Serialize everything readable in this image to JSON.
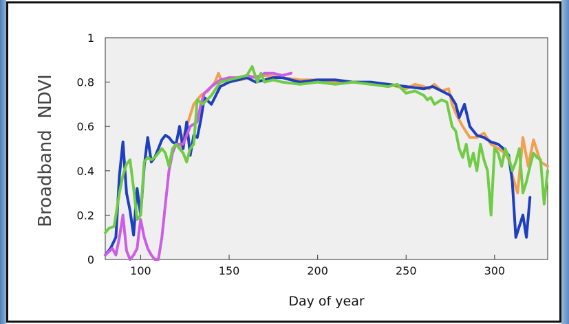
{
  "chart_data": {
    "type": "line",
    "title": "",
    "xlabel": "Day of year",
    "ylabel": "Broadband  NDVI",
    "xlim": [
      80,
      330
    ],
    "ylim": [
      0,
      1
    ],
    "x_ticks": [
      100,
      150,
      200,
      250,
      300
    ],
    "y_ticks": [
      0,
      0.2,
      0.4,
      0.6,
      0.8,
      1
    ],
    "y_tick_labels": [
      "0",
      "0.2",
      "0.4",
      "0.6",
      "0.8",
      "1"
    ],
    "x_tick_labels": [
      "100",
      "150",
      "200",
      "250",
      "300"
    ],
    "grid": false,
    "plot_background": "#efefef",
    "series": [
      {
        "color": "#f0a050",
        "x": [
          122,
          126,
          130,
          134,
          138,
          142,
          144,
          146,
          150,
          156,
          162,
          170,
          180,
          190,
          200,
          210,
          220,
          230,
          240,
          250,
          255,
          260,
          263,
          266,
          270,
          274,
          276,
          278,
          282,
          286,
          290,
          294,
          298,
          302,
          306,
          308,
          310,
          313,
          316,
          319,
          322,
          326,
          330
        ],
        "y": [
          0.5,
          0.6,
          0.7,
          0.74,
          0.76,
          0.8,
          0.84,
          0.8,
          0.82,
          0.81,
          0.82,
          0.83,
          0.82,
          0.81,
          0.81,
          0.8,
          0.8,
          0.79,
          0.79,
          0.77,
          0.79,
          0.78,
          0.77,
          0.79,
          0.76,
          0.77,
          0.7,
          0.66,
          0.6,
          0.55,
          0.55,
          0.57,
          0.52,
          0.5,
          0.48,
          0.45,
          0.38,
          0.3,
          0.55,
          0.42,
          0.54,
          0.44,
          0.42
        ]
      },
      {
        "color": "#1e3fbf",
        "x": [
          80,
          83,
          86,
          88,
          90,
          92,
          94,
          96,
          98,
          100,
          102,
          104,
          106,
          108,
          110,
          112,
          114,
          116,
          118,
          120,
          122,
          124,
          126,
          128,
          130,
          132,
          134,
          136,
          140,
          145,
          150,
          155,
          160,
          165,
          170,
          175,
          180,
          185,
          190,
          200,
          210,
          220,
          230,
          240,
          250,
          260,
          265,
          270,
          275,
          278,
          280,
          283,
          286,
          290,
          294,
          298,
          302,
          305,
          308,
          310,
          312,
          314,
          316,
          318,
          320
        ],
        "y": [
          0.02,
          0.05,
          0.1,
          0.38,
          0.53,
          0.3,
          0.22,
          0.11,
          0.32,
          0.2,
          0.42,
          0.55,
          0.44,
          0.46,
          0.5,
          0.54,
          0.56,
          0.55,
          0.53,
          0.52,
          0.6,
          0.5,
          0.62,
          0.47,
          0.56,
          0.55,
          0.63,
          0.73,
          0.7,
          0.78,
          0.8,
          0.81,
          0.82,
          0.8,
          0.81,
          0.82,
          0.82,
          0.81,
          0.8,
          0.81,
          0.81,
          0.8,
          0.8,
          0.79,
          0.78,
          0.77,
          0.78,
          0.76,
          0.74,
          0.7,
          0.64,
          0.7,
          0.6,
          0.56,
          0.55,
          0.53,
          0.52,
          0.5,
          0.47,
          0.35,
          0.1,
          0.15,
          0.2,
          0.1,
          0.28
        ]
      },
      {
        "color": "#cc5ee6",
        "x": [
          80,
          84,
          86,
          88,
          90,
          92,
          94,
          96,
          98,
          99,
          100,
          102,
          104,
          106,
          108,
          110,
          112,
          114,
          116,
          118,
          120,
          124,
          128,
          132,
          134,
          136,
          140,
          145,
          150,
          155,
          160,
          165,
          170,
          175,
          180,
          185
        ],
        "y": [
          0.02,
          0.05,
          0.02,
          0.1,
          0.2,
          0.04,
          0.0,
          0.02,
          0.05,
          0.12,
          0.18,
          0.1,
          0.05,
          0.02,
          0.0,
          0.0,
          0.1,
          0.25,
          0.4,
          0.48,
          0.52,
          0.52,
          0.6,
          0.62,
          0.7,
          0.75,
          0.78,
          0.81,
          0.82,
          0.82,
          0.83,
          0.82,
          0.84,
          0.84,
          0.83,
          0.84
        ]
      },
      {
        "color": "#6fcc44",
        "x": [
          80,
          82,
          85,
          88,
          90,
          92,
          94,
          96,
          98,
          100,
          102,
          104,
          106,
          108,
          110,
          112,
          114,
          116,
          118,
          120,
          122,
          124,
          126,
          128,
          130,
          132,
          135,
          140,
          145,
          150,
          155,
          160,
          163,
          166,
          168,
          170,
          175,
          180,
          190,
          200,
          210,
          220,
          230,
          240,
          245,
          250,
          255,
          260,
          262,
          264,
          266,
          268,
          270,
          273,
          276,
          278,
          280,
          282,
          284,
          286,
          288,
          290,
          292,
          294,
          296,
          298,
          300,
          302,
          304,
          306,
          308,
          310,
          312,
          314,
          316,
          318,
          320,
          322,
          324,
          326,
          328,
          330
        ],
        "y": [
          0.12,
          0.14,
          0.15,
          0.3,
          0.38,
          0.43,
          0.45,
          0.32,
          0.18,
          0.2,
          0.44,
          0.46,
          0.45,
          0.46,
          0.48,
          0.5,
          0.48,
          0.42,
          0.5,
          0.52,
          0.5,
          0.48,
          0.44,
          0.5,
          0.52,
          0.72,
          0.7,
          0.74,
          0.8,
          0.81,
          0.82,
          0.83,
          0.87,
          0.8,
          0.84,
          0.8,
          0.81,
          0.8,
          0.79,
          0.8,
          0.79,
          0.8,
          0.79,
          0.78,
          0.79,
          0.75,
          0.76,
          0.74,
          0.72,
          0.73,
          0.7,
          0.71,
          0.72,
          0.71,
          0.6,
          0.58,
          0.5,
          0.46,
          0.52,
          0.42,
          0.48,
          0.4,
          0.52,
          0.45,
          0.4,
          0.2,
          0.5,
          0.48,
          0.42,
          0.5,
          0.46,
          0.4,
          0.44,
          0.5,
          0.3,
          0.35,
          0.42,
          0.48,
          0.46,
          0.45,
          0.25,
          0.4
        ]
      }
    ]
  }
}
